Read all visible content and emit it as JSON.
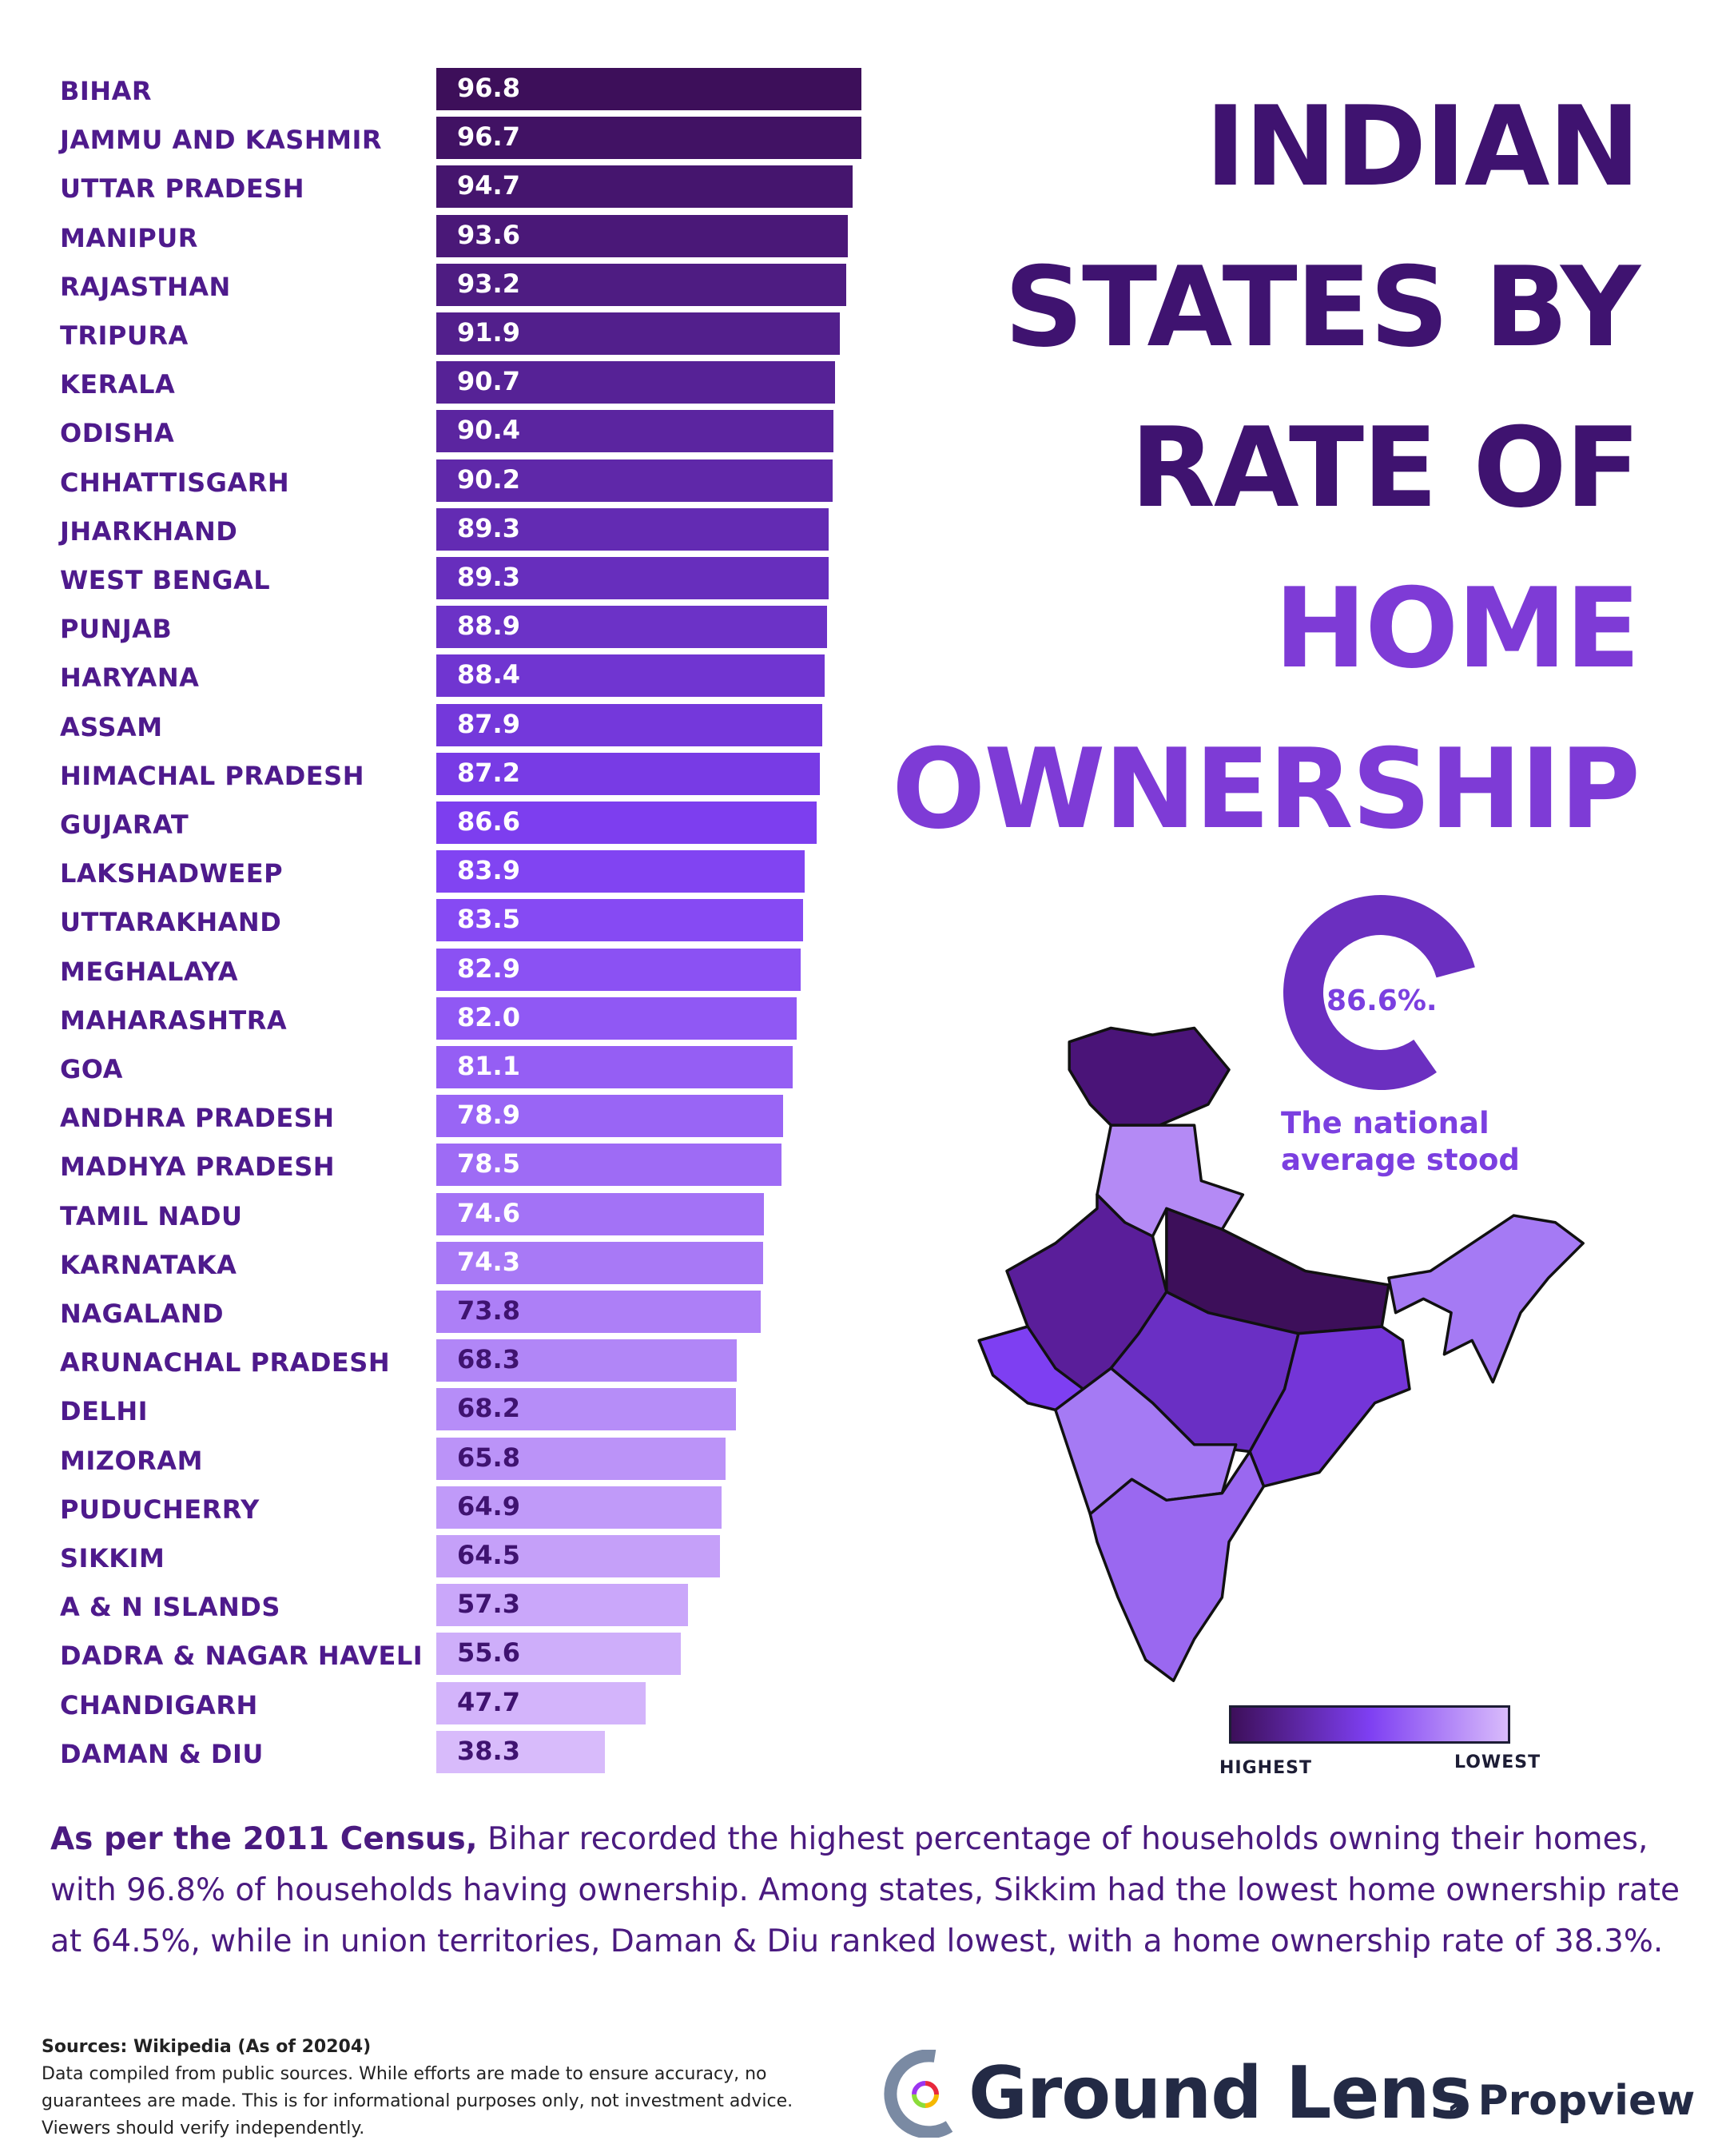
{
  "title": {
    "lines_dark": [
      "INDIAN",
      "STATES BY",
      "RATE OF"
    ],
    "lines_accent": [
      "HOME",
      "OWNERSHIP"
    ]
  },
  "colors": {
    "title_dark": "#3f1370",
    "title_accent": "#7e3bd6",
    "label": "#4e1a8c",
    "scale": [
      "#3d0f5a",
      "#7e3ff2",
      "#d8bbfb"
    ],
    "donut": "#6b2fc0"
  },
  "chart_data": {
    "type": "bar",
    "orientation": "horizontal",
    "categories": [
      "BIHAR",
      "JAMMU AND KASHMIR",
      "UTTAR PRADESH",
      "MANIPUR",
      "RAJASTHAN",
      "TRIPURA",
      "KERALA",
      "ODISHA",
      "CHHATTISGARH",
      "JHARKHAND",
      "WEST BENGAL",
      "PUNJAB",
      "HARYANA",
      "ASSAM",
      "HIMACHAL PRADESH",
      "GUJARAT",
      "LAKSHADWEEP",
      "UTTARAKHAND",
      "MEGHALAYA",
      "MAHARASHTRA",
      "GOA",
      "ANDHRA PRADESH",
      "MADHYA PRADESH",
      "TAMIL NADU",
      "KARNATAKA",
      "NAGALAND",
      "ARUNACHAL PRADESH",
      "DELHI",
      "MIZORAM",
      "PUDUCHERRY",
      "SIKKIM",
      "A & N ISLANDS",
      "DADRA & NAGAR HAVELI",
      "CHANDIGARH",
      "DAMAN & DIU"
    ],
    "values": [
      96.8,
      96.7,
      94.7,
      93.6,
      93.2,
      91.9,
      90.7,
      90.4,
      90.2,
      89.3,
      89.3,
      88.9,
      88.4,
      87.9,
      87.2,
      86.6,
      83.9,
      83.5,
      82.9,
      82.0,
      81.1,
      78.9,
      78.5,
      74.6,
      74.3,
      73.8,
      68.3,
      68.2,
      65.8,
      64.9,
      64.5,
      57.3,
      55.6,
      47.7,
      38.3
    ],
    "value_labels": [
      "96.8",
      "96.7",
      "94.7",
      "93.6",
      "93.2",
      "91.9",
      "90.7",
      "90.4",
      "90.2",
      "89.3",
      "89.3",
      "88.9",
      "88.4",
      "87.9",
      "87.2",
      "86.6",
      "83.9",
      "83.5",
      "82.9",
      "82.0",
      "81.1",
      "78.9",
      "78.5",
      "74.6",
      "74.3",
      "73.8",
      "68.3",
      "68.2",
      "65.8",
      "64.9",
      "64.5",
      "57.3",
      "55.6",
      "47.7",
      "38.3"
    ],
    "xlim": [
      0,
      100
    ],
    "grid": false,
    "unit": "%"
  },
  "national_average": {
    "value": "86.6%.",
    "percent": 86.6,
    "caption_line1": "The national",
    "caption_line2": "average stood"
  },
  "legend": {
    "high": "HIGHEST",
    "low": "LOWEST"
  },
  "paragraph": {
    "bold": "As per the 2011 Census,",
    "text": " Bihar recorded the highest percentage of households owning their homes, with 96.8% of households having ownership. Among states, Sikkim had the lowest home ownership rate at 64.5%, while in union territories, Daman & Diu ranked lowest, with a home ownership rate of 38.3%."
  },
  "sources": {
    "title": "Sources: Wikipedia (As of 20204)",
    "disclaimer": "Data compiled from public sources. While efforts are made to ensure accuracy, no guarantees are made. This is for informational purposes only, not investment advice. Viewers should verify independently."
  },
  "brand": {
    "name": "Ground Lens",
    "sub": "› Propview"
  }
}
